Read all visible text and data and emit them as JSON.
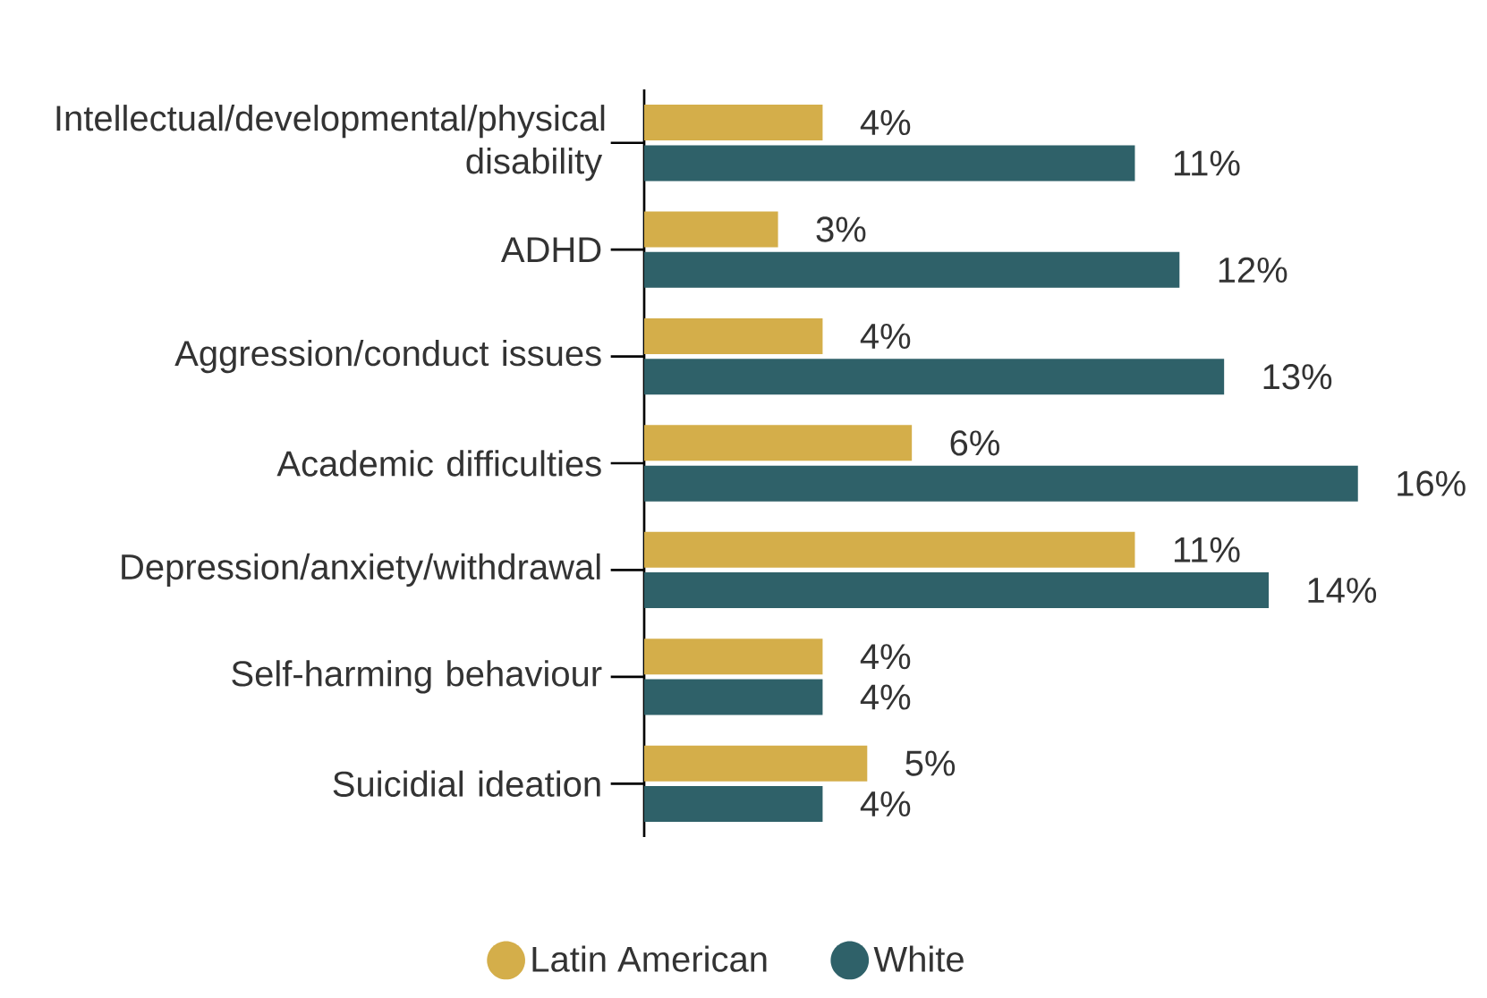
{
  "chart_data": {
    "type": "bar",
    "orientation": "horizontal",
    "categories": [
      "Intellectual/developmental/physical disability",
      "ADHD",
      "Aggression/conduct issues",
      "Academic difficulties",
      "Depression/anxiety/withdrawal",
      "Self-harming behaviour",
      "Suicidial ideation"
    ],
    "series": [
      {
        "name": "Latin American",
        "color": "#d4ae4a",
        "values": [
          4,
          3,
          4,
          6,
          11,
          4,
          5
        ],
        "value_labels": [
          "4%",
          "3%",
          "4%",
          "6%",
          "11%",
          "4%",
          "5%"
        ]
      },
      {
        "name": "White",
        "color": "#2f6169",
        "values": [
          11,
          12,
          13,
          16,
          14,
          4,
          4
        ],
        "value_labels": [
          "11%",
          "12%",
          "13%",
          "16%",
          "14%",
          "4%",
          "4%"
        ]
      }
    ],
    "tick_labels": "y",
    "legend": "bottom"
  }
}
